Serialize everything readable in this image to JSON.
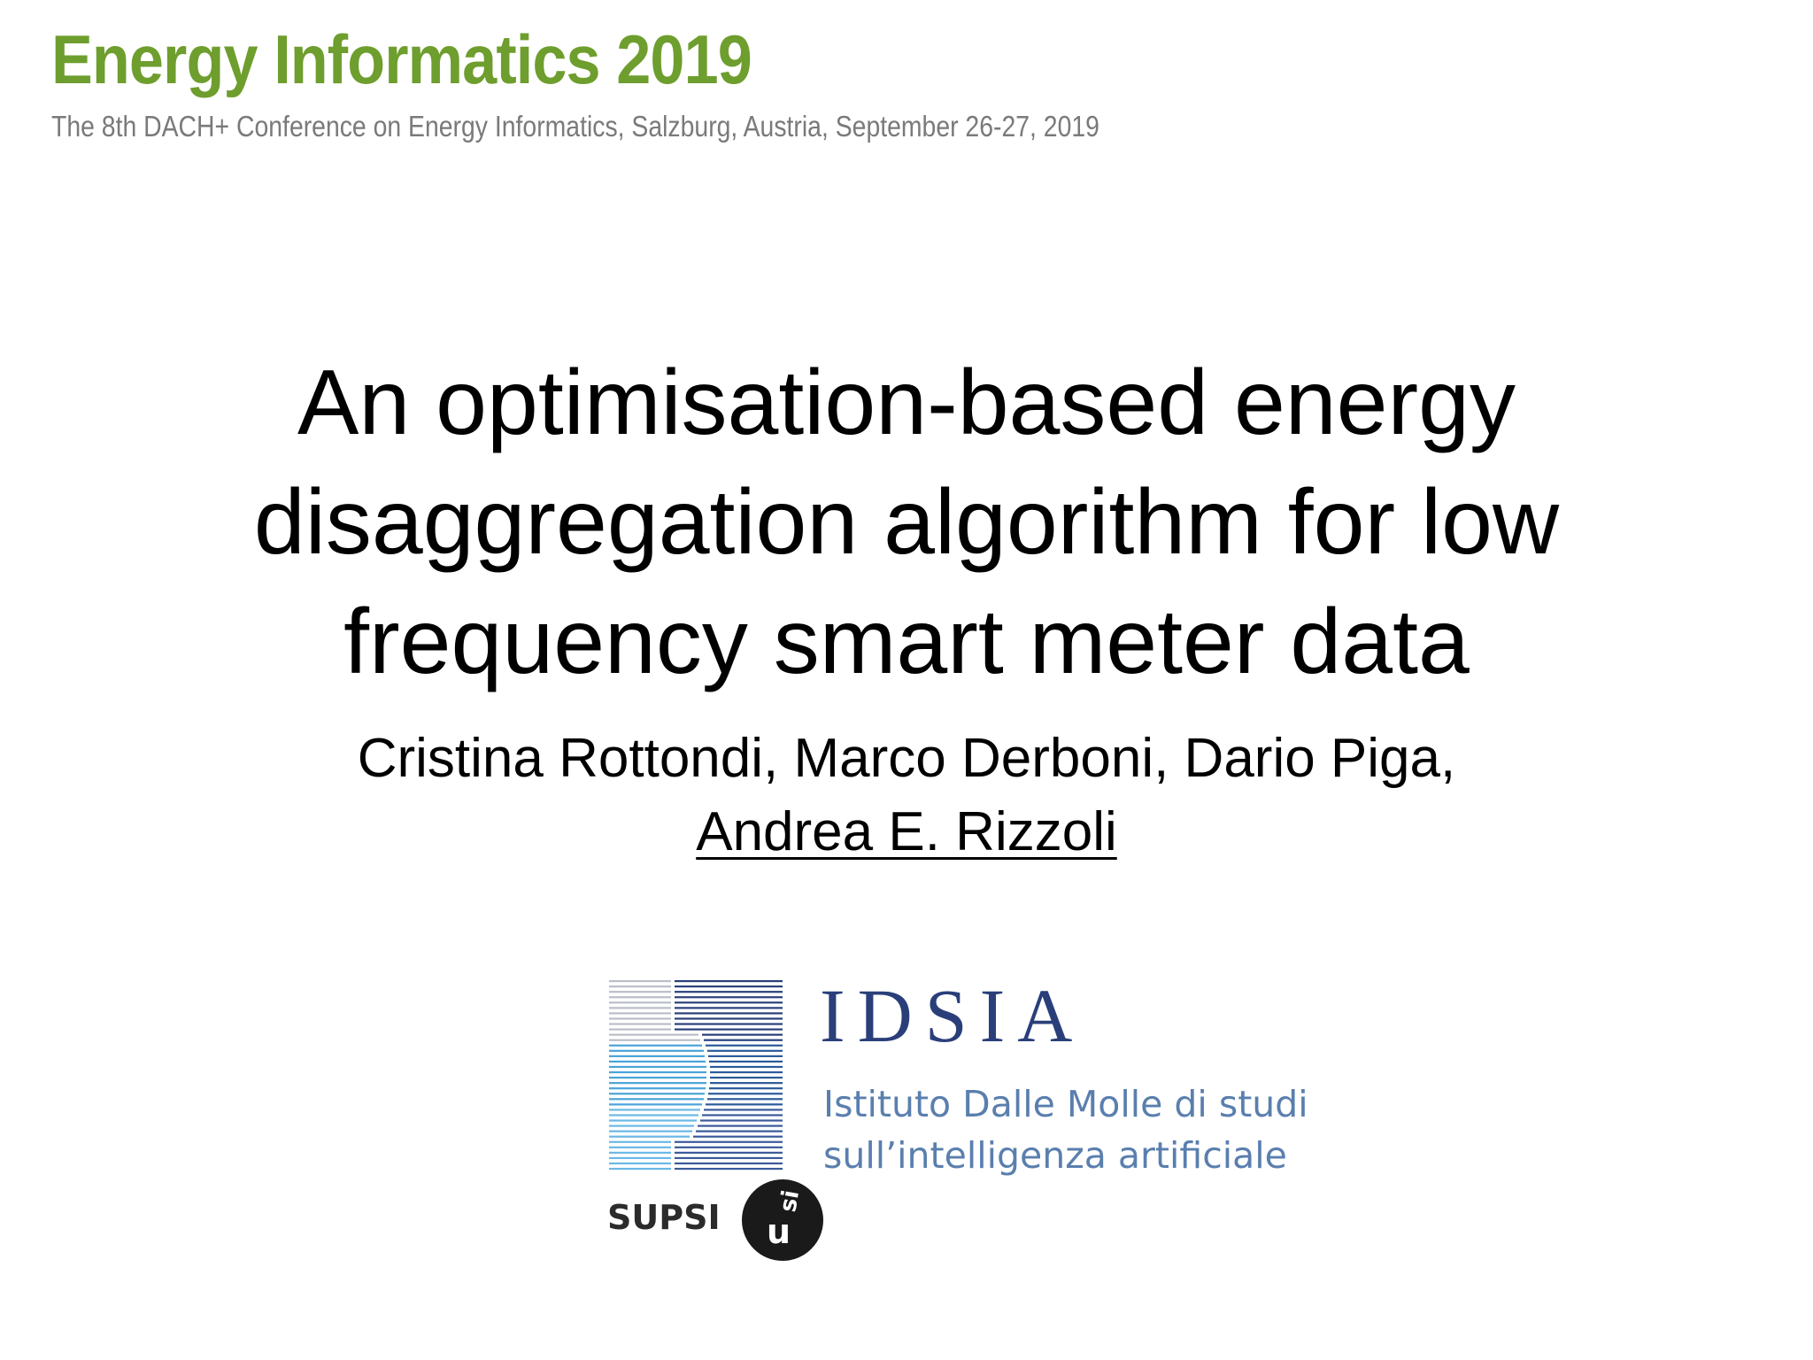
{
  "header": {
    "conference_title": "Energy Informatics 2019",
    "conference_subtitle": "The 8th DACH+ Conference on Energy Informatics, Salzburg, Austria, September 26-27, 2019",
    "accent_color": "#6e9e2e"
  },
  "talk": {
    "title_lines": [
      "An optimisation-based energy",
      "disaggregation algorithm for low",
      "frequency smart meter data"
    ],
    "authors_line1": "Cristina Rottondi, Marco Derboni, Dario Piga,",
    "presenter": "Andrea E. Rizzoli"
  },
  "logos": {
    "idsia_name": "IDSIA",
    "idsia_desc_line1": "Istituto Dalle Molle di studi",
    "idsia_desc_line2": "sull’intelligenza artificiale",
    "supsi": "SUPSI",
    "usi_letters_u": "u",
    "usi_letters_si": "si",
    "idsia_color": "#2a3f7a",
    "idsia_desc_color": "#5a7fae"
  }
}
